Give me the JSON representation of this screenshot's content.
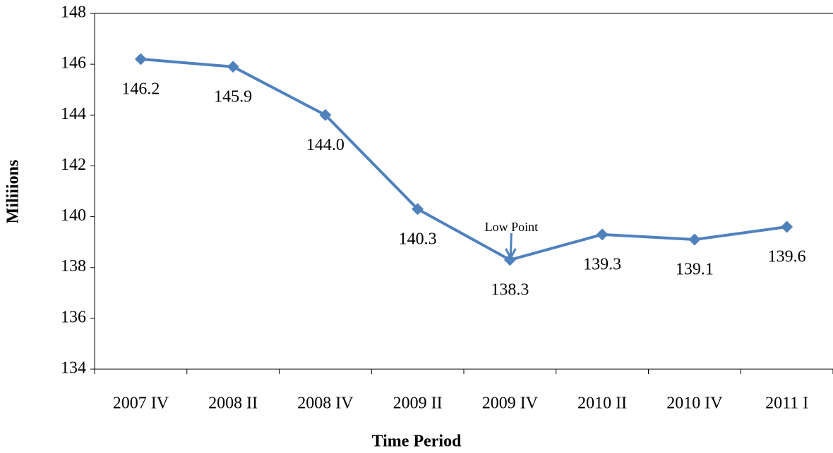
{
  "chart_data": {
    "type": "line",
    "x_label": "Time Period",
    "y_label": "Miliiions",
    "categories": [
      "2007 IV",
      "2008 II",
      "2008 IV",
      "2009 II",
      "2009 IV",
      "2010 II",
      "2010 IV",
      "2011 I"
    ],
    "values": [
      146.2,
      145.9,
      144.0,
      140.3,
      138.3,
      139.3,
      139.1,
      139.6
    ],
    "value_labels": [
      "146.2",
      "145.9",
      "144.0",
      "140.3",
      "138.3",
      "139.3",
      "139.1",
      "139.6"
    ],
    "color": "#4f81bd",
    "ylim": [
      134,
      148
    ],
    "yticks": [
      134,
      136,
      138,
      140,
      142,
      144,
      146,
      148
    ],
    "grid": false,
    "annotation": "Low Point"
  }
}
